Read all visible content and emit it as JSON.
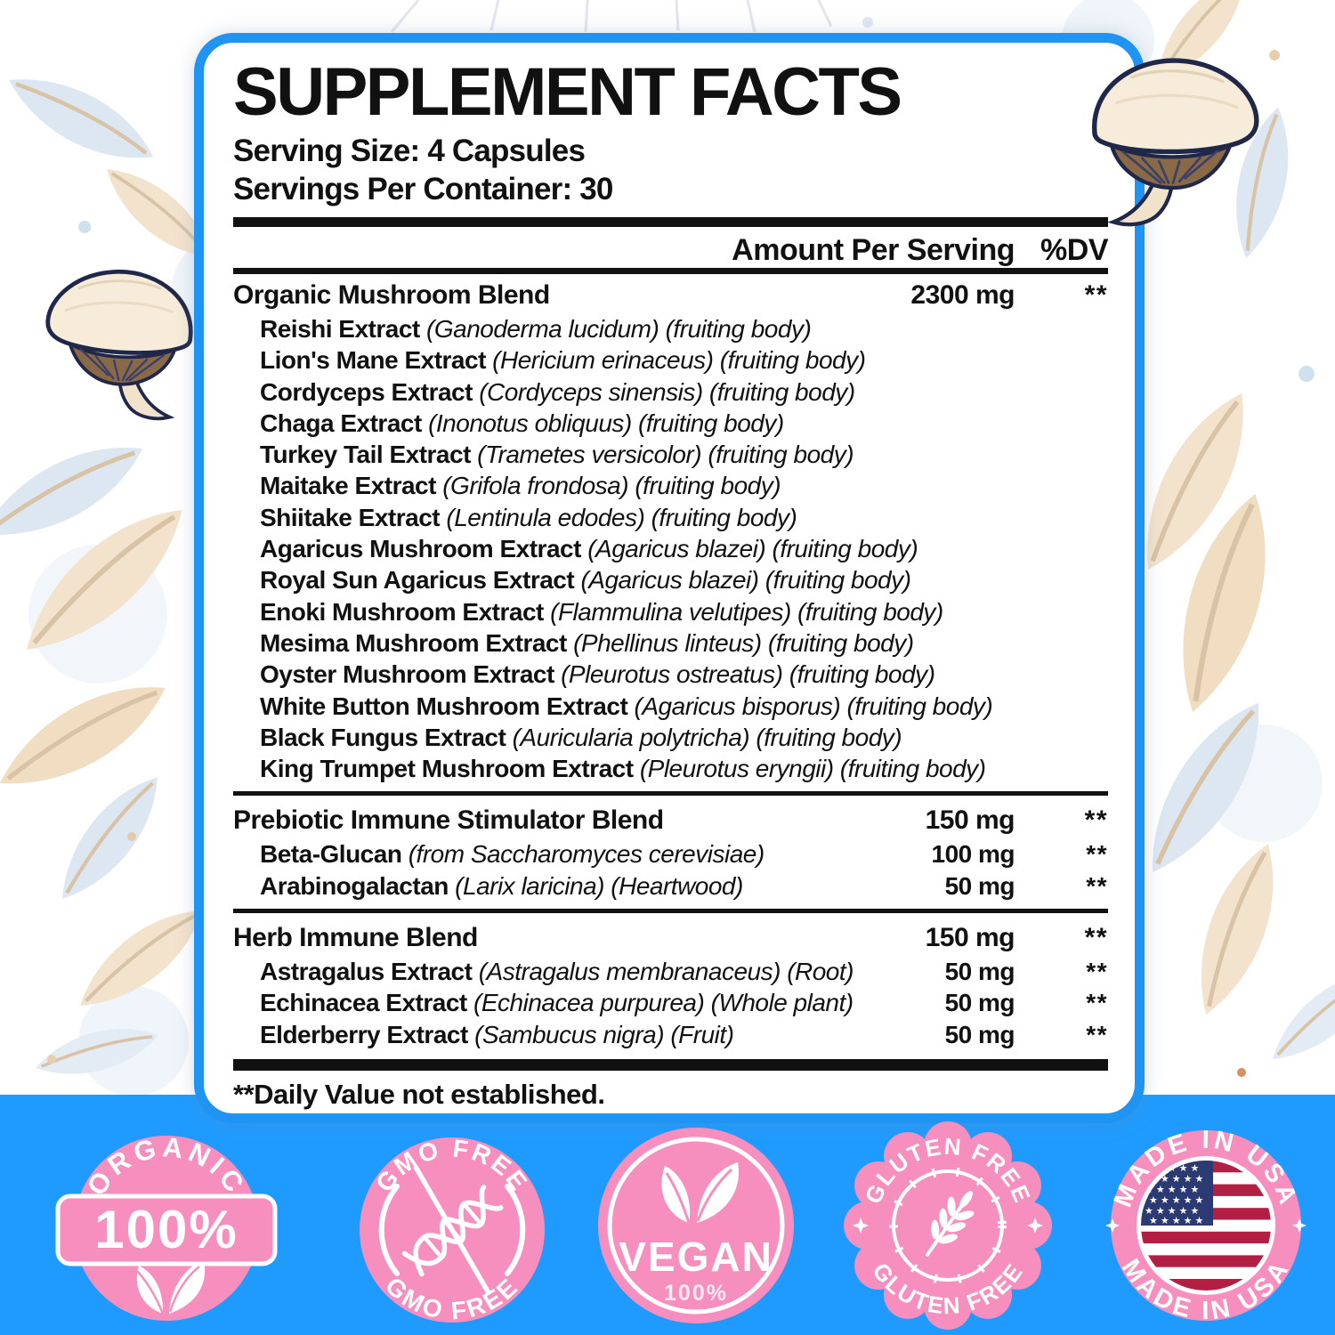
{
  "colors": {
    "band_blue": "#1f9bff",
    "panel_border_blue": "#2094f2",
    "badge_pink": "#f78fbe",
    "rule_black": "#111111",
    "flag_navy": "#2b3a72",
    "flag_red": "#b31f42"
  },
  "panel": {
    "title": "SUPPLEMENT FACTS",
    "serving_size": "Serving Size: 4 Capsules",
    "servings_per_container": "Servings Per Container: 30",
    "columns": {
      "amount": "Amount Per Serving",
      "dv": "%DV"
    },
    "sections": [
      {
        "name": "Organic Mushroom Blend",
        "amount": "2300 mg",
        "dv": "**",
        "items": [
          {
            "name": "Reishi Extract",
            "detail": "(Ganoderma lucidum) (fruiting body)",
            "amount": "",
            "dv": ""
          },
          {
            "name": "Lion's Mane Extract",
            "detail": "(Hericium erinaceus) (fruiting body)",
            "amount": "",
            "dv": ""
          },
          {
            "name": "Cordyceps Extract",
            "detail": "(Cordyceps sinensis) (fruiting body)",
            "amount": "",
            "dv": ""
          },
          {
            "name": "Chaga Extract",
            "detail": "(Inonotus obliquus) (fruiting body)",
            "amount": "",
            "dv": ""
          },
          {
            "name": "Turkey Tail Extract",
            "detail": "(Trametes versicolor) (fruiting body)",
            "amount": "",
            "dv": ""
          },
          {
            "name": "Maitake Extract",
            "detail": "(Grifola frondosa) (fruiting body)",
            "amount": "",
            "dv": ""
          },
          {
            "name": "Shiitake Extract",
            "detail": "(Lentinula edodes) (fruiting body)",
            "amount": "",
            "dv": ""
          },
          {
            "name": "Agaricus Mushroom Extract",
            "detail": "(Agaricus blazei) (fruiting body)",
            "amount": "",
            "dv": ""
          },
          {
            "name": "Royal Sun Agaricus Extract",
            "detail": "(Agaricus blazei) (fruiting body)",
            "amount": "",
            "dv": ""
          },
          {
            "name": "Enoki Mushroom Extract",
            "detail": "(Flammulina velutipes) (fruiting body)",
            "amount": "",
            "dv": ""
          },
          {
            "name": "Mesima Mushroom Extract",
            "detail": "(Phellinus linteus) (fruiting body)",
            "amount": "",
            "dv": ""
          },
          {
            "name": "Oyster Mushroom Extract",
            "detail": "(Pleurotus ostreatus) (fruiting body)",
            "amount": "",
            "dv": ""
          },
          {
            "name": "White Button Mushroom Extract",
            "detail": "(Agaricus bisporus) (fruiting body)",
            "amount": "",
            "dv": ""
          },
          {
            "name": "Black Fungus Extract",
            "detail": "(Auricularia polytricha) (fruiting body)",
            "amount": "",
            "dv": ""
          },
          {
            "name": "King Trumpet Mushroom Extract",
            "detail": "(Pleurotus eryngii) (fruiting body)",
            "amount": "",
            "dv": ""
          }
        ]
      },
      {
        "name": "Prebiotic Immune Stimulator Blend",
        "amount": "150 mg",
        "dv": "**",
        "items": [
          {
            "name": "Beta-Glucan",
            "detail": "(from Saccharomyces cerevisiae)",
            "amount": "100 mg",
            "dv": "**"
          },
          {
            "name": "Arabinogalactan",
            "detail": "(Larix laricina) (Heartwood)",
            "amount": "50 mg",
            "dv": "**"
          }
        ]
      },
      {
        "name": "Herb Immune Blend",
        "amount": "150 mg",
        "dv": "**",
        "items": [
          {
            "name": "Astragalus Extract",
            "detail": "(Astragalus membranaceus) (Root)",
            "amount": "50 mg",
            "dv": "**"
          },
          {
            "name": "Echinacea Extract",
            "detail": "(Echinacea purpurea) (Whole plant)",
            "amount": "50 mg",
            "dv": "**"
          },
          {
            "name": "Elderberry Extract",
            "detail": "(Sambucus nigra) (Fruit)",
            "amount": "50 mg",
            "dv": "**"
          }
        ]
      }
    ],
    "footnote": "**Daily Value not established."
  },
  "badges": {
    "organic": {
      "arc": "ORGANIC",
      "value": "100%",
      "icon": "leaf-icon"
    },
    "gmo_free": {
      "top": "GMO FREE",
      "bottom": "GMO FREE",
      "icon": "dna-icon"
    },
    "vegan": {
      "label": "VEGAN",
      "value": "100%",
      "icon": "leaf-icon"
    },
    "gluten_free": {
      "top": "GLUTEN FREE",
      "bottom": "GLUTEN FREE",
      "icon": "wheat-icon"
    },
    "made_in_usa": {
      "top": "MADE IN USA",
      "bottom": "MADE IN USA",
      "icon": "usa-flag-icon"
    }
  }
}
